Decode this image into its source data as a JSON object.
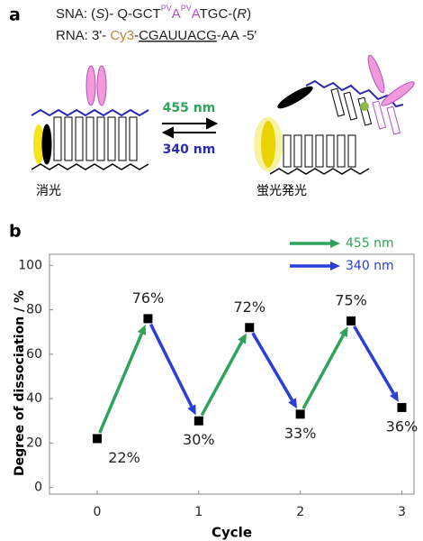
{
  "panel_a": {
    "label": "a",
    "sna": [
      "SNA:  (",
      "S",
      ")- Q-GCT",
      "PV",
      "A",
      "PV",
      "A",
      "TGC-(",
      "R",
      ")"
    ],
    "rna": [
      "RNA:  3'- ",
      "Cy3",
      "-",
      "CGAUUACG",
      "-AA  -5'"
    ],
    "forward_light": "455 nm",
    "reverse_light": "340 nm",
    "left_state": "消光",
    "right_state": "蛍光発光"
  },
  "chart_data": {
    "type": "line",
    "panel_label": "b",
    "x": [
      0,
      0.5,
      1,
      1.5,
      2,
      2.5,
      3
    ],
    "values": [
      22,
      76,
      30,
      72,
      33,
      75,
      36
    ],
    "value_labels": [
      "22%",
      "76%",
      "30%",
      "72%",
      "33%",
      "75%",
      "36%"
    ],
    "marker_color": "#000000",
    "legend": [
      {
        "name": "455 nm",
        "color": "#2fa35c"
      },
      {
        "name": "340 nm",
        "color": "#2a3fd8"
      }
    ],
    "xlabel": "Cycle",
    "ylabel": "Degree of dissociation / %",
    "xlim": [
      -0.47,
      3.12
    ],
    "ylim": [
      -3,
      105
    ],
    "xticks": [
      0,
      1,
      2,
      3
    ],
    "yticks": [
      0,
      20,
      40,
      60,
      80,
      100
    ]
  }
}
